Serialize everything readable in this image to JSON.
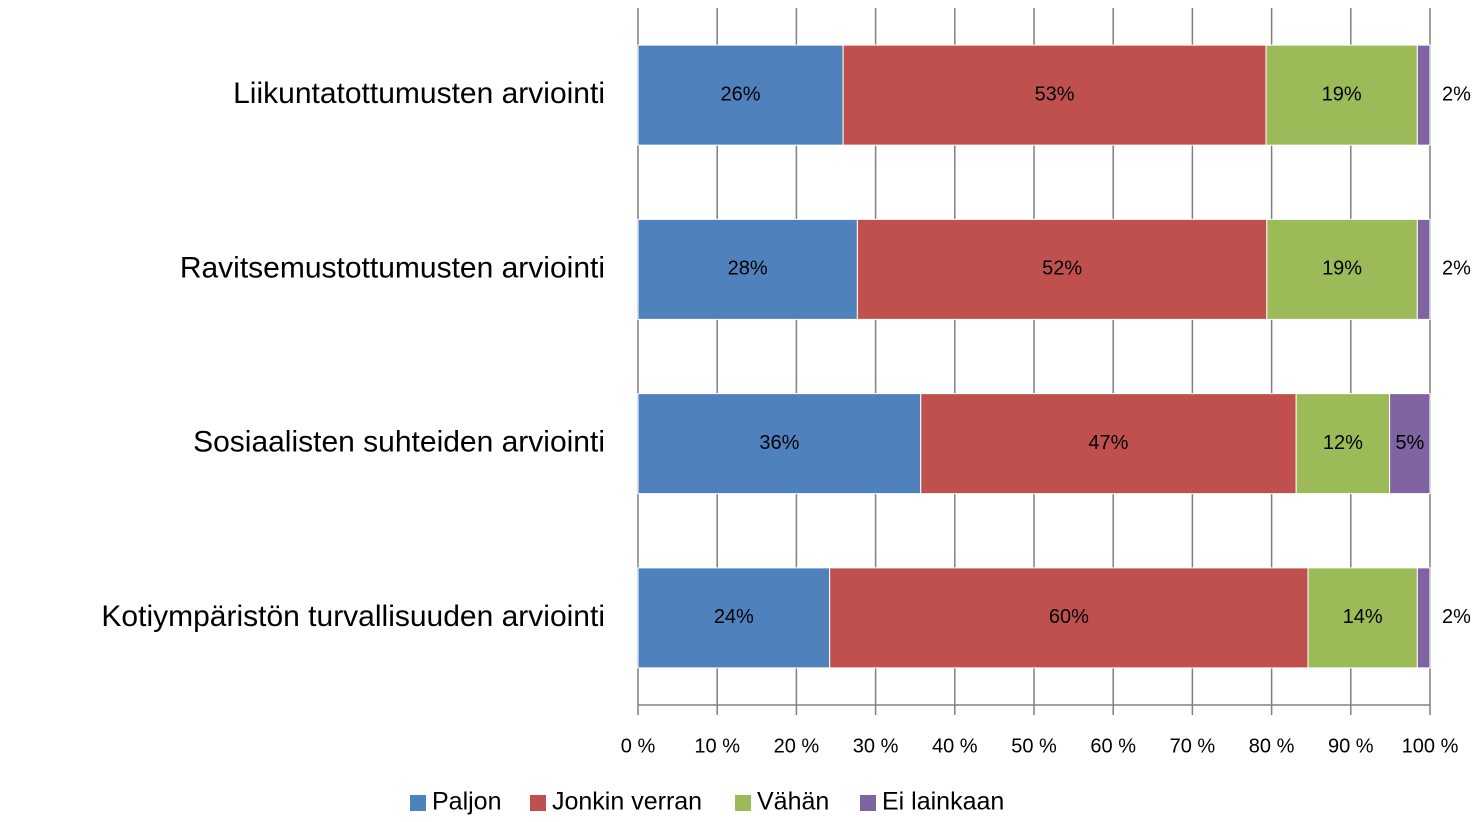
{
  "chart_data": {
    "type": "bar",
    "orientation": "horizontal",
    "stacked": true,
    "categories": [
      "Liikuntatottumusten arviointi",
      "Ravitsemustottumusten arviointi",
      "Sosiaalisten suhteiden arviointi",
      "Kotiympäristön turvallisuuden arviointi"
    ],
    "series": [
      {
        "name": "Paljon",
        "color": "#4f81bd",
        "values": [
          25.9,
          27.7,
          35.7,
          24.2
        ],
        "value_labels": [
          "26%",
          "28%",
          "36%",
          "24%"
        ]
      },
      {
        "name": "Jonkin verran",
        "color": "#c0504d",
        "values": [
          53.4,
          51.7,
          47.4,
          60.4
        ],
        "value_labels": [
          "53%",
          "52%",
          "47%",
          "60%"
        ]
      },
      {
        "name": "Vähän",
        "color": "#9bbb59",
        "values": [
          19.1,
          19.0,
          11.8,
          13.8
        ],
        "value_labels": [
          "19%",
          "19%",
          "12%",
          "14%"
        ]
      },
      {
        "name": "Ei lainkaan",
        "color": "#8064a2",
        "values": [
          1.6,
          1.6,
          5.1,
          1.6
        ],
        "value_labels": [
          "2%",
          "2%",
          "5%",
          "2%"
        ]
      }
    ],
    "xlim": [
      0,
      100
    ],
    "xticks": [
      {
        "value": 0,
        "label": "0 %"
      },
      {
        "value": 10,
        "label": "10 %"
      },
      {
        "value": 20,
        "label": "20 %"
      },
      {
        "value": 30,
        "label": "30 %"
      },
      {
        "value": 40,
        "label": "40 %"
      },
      {
        "value": 50,
        "label": "50 %"
      },
      {
        "value": 60,
        "label": "60 %"
      },
      {
        "value": 70,
        "label": "70 %"
      },
      {
        "value": 80,
        "label": "80 %"
      },
      {
        "value": 90,
        "label": "90 %"
      },
      {
        "value": 100,
        "label": "100 %"
      }
    ],
    "grid": true,
    "legend": "bottom"
  }
}
